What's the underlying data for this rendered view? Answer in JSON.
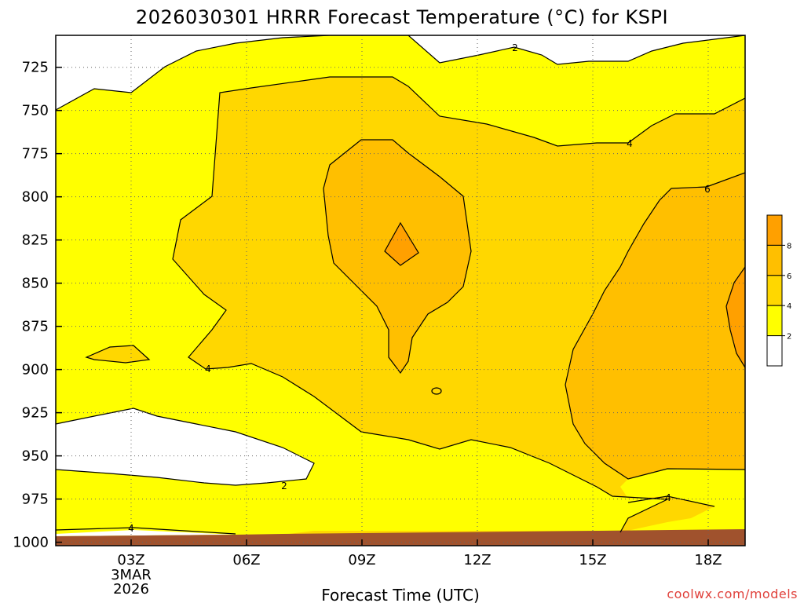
{
  "chart_data": {
    "type": "filled-contour",
    "title": "2026030301 HRRR Forecast Temperature (°C) for KSPI",
    "xlabel": "Forecast Time (UTC)",
    "ylabel": "",
    "x_ticks": [
      "03Z",
      "06Z",
      "09Z",
      "12Z",
      "15Z",
      "18Z"
    ],
    "x_date_label": [
      "3MAR",
      "2026"
    ],
    "y_ticks": [
      "725",
      "750",
      "775",
      "800",
      "825",
      "850",
      "875",
      "900",
      "925",
      "950",
      "975",
      "1000"
    ],
    "y_axis": "pressure (hPa), inverted",
    "grid": true,
    "contour_levels": [
      2,
      4,
      6,
      8
    ],
    "contour_labels": [
      "2",
      "2",
      "4",
      "4",
      "4",
      "4",
      "6"
    ],
    "colorbar": {
      "ticks": [
        "2",
        "4",
        "6",
        "8"
      ],
      "bands": [
        {
          "range": "< 2",
          "color": "#ffffff"
        },
        {
          "range": "2 - 4",
          "color": "#ffff00"
        },
        {
          "range": "4 - 6",
          "color": "#ffd700"
        },
        {
          "range": "6 - 8",
          "color": "#ffbf00"
        },
        {
          "range": "> 8",
          "color": "#ffa000"
        }
      ]
    },
    "ground_color": "#a0522d"
  },
  "footer": {
    "credit": "coolwx.com/models"
  }
}
